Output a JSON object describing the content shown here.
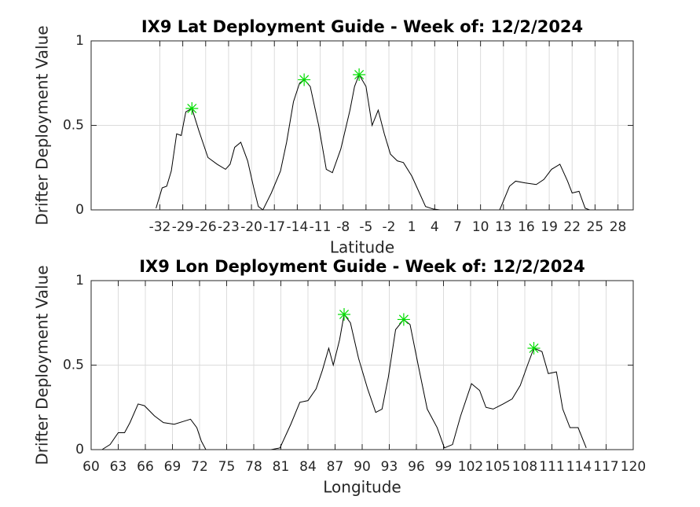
{
  "chart_data": [
    {
      "type": "line",
      "title": "IX9 Lat Deployment Guide - Week of: 12/2/2024",
      "xlabel": "Latitude",
      "ylabel": "Drifter Deployment Value",
      "xlim": [
        -41,
        30
      ],
      "ylim": [
        0,
        1
      ],
      "xticks": [
        -32,
        -29,
        -26,
        -23,
        -20,
        -17,
        -14,
        -11,
        -8,
        -5,
        -2,
        1,
        4,
        7,
        10,
        13,
        16,
        19,
        22,
        25,
        28
      ],
      "yticks": [
        0,
        {
          "value": 0.5,
          "label": "0.5"
        },
        1
      ],
      "grid": true,
      "series": [
        {
          "color": "#000000",
          "x": [
            -32.5,
            -31.7,
            -31.1,
            -30.5,
            -29.8,
            -29.2,
            -28.6,
            -27.8,
            -26.9,
            -25.7,
            -24.5,
            -23.4,
            -22.8,
            -22.2,
            -21.4,
            -20.5,
            -19.7,
            -19.1,
            -18.5,
            -17.4,
            -16.2,
            -15.4,
            -14.5,
            -13.7,
            -13.1,
            -12.3,
            -11.2,
            -10.2,
            -9.4,
            -8.3,
            -7.1,
            -6.5,
            -5.9,
            -5.0,
            -4.2,
            -3.4,
            -2.6,
            -1.8,
            -0.9,
            -0.1,
            1.0,
            2.0,
            2.8,
            3.8,
            4.7,
            12.5,
            12.7,
            13.8,
            14.6,
            15.8,
            17.3,
            18.3,
            19.3,
            20.4,
            21.4,
            22.0,
            22.9,
            23.7,
            24.3
          ],
          "values": [
            0.01,
            0.13,
            0.14,
            0.23,
            0.45,
            0.44,
            0.58,
            0.6,
            0.47,
            0.31,
            0.27,
            0.24,
            0.27,
            0.37,
            0.4,
            0.29,
            0.13,
            0.02,
            0,
            0.1,
            0.23,
            0.4,
            0.64,
            0.75,
            0.77,
            0.73,
            0.5,
            0.24,
            0.22,
            0.36,
            0.59,
            0.73,
            0.8,
            0.73,
            0.5,
            0.59,
            0.45,
            0.33,
            0.29,
            0.28,
            0.2,
            0.1,
            0.02,
            0.005,
            0,
            0,
            0.02,
            0.14,
            0.17,
            0.16,
            0.15,
            0.18,
            0.24,
            0.27,
            0.17,
            0.1,
            0.11,
            0.01,
            0
          ]
        },
        {
          "type": "scatter",
          "marker": "asterisk",
          "color": "#00dd00",
          "x": [
            -27.8,
            -13.1,
            -5.9
          ],
          "values": [
            0.6,
            0.77,
            0.8
          ]
        }
      ]
    },
    {
      "type": "line",
      "title": "IX9 Lon Deployment Guide - Week of: 12/2/2024",
      "xlabel": "Longitude",
      "ylabel": "Drifter Deployment Value",
      "xlim": [
        60,
        120
      ],
      "ylim": [
        0,
        1
      ],
      "xticks": [
        60,
        63,
        66,
        69,
        72,
        75,
        78,
        81,
        84,
        87,
        90,
        93,
        96,
        99,
        102,
        105,
        108,
        111,
        114,
        117,
        120
      ],
      "yticks": [
        0,
        {
          "value": 0.5,
          "label": "0.5"
        },
        1
      ],
      "grid": true,
      "series": [
        {
          "color": "#000000",
          "x": [
            61.2,
            62.1,
            63.0,
            63.7,
            64.3,
            65.2,
            65.9,
            67.0,
            68.0,
            69.2,
            70.4,
            71.0,
            71.7,
            72.2,
            72.7,
            79.9,
            80.9,
            82.1,
            83.1,
            84.0,
            84.9,
            85.6,
            86.3,
            86.8,
            87.5,
            88.0,
            88.7,
            89.6,
            90.6,
            91.5,
            92.2,
            92.9,
            93.7,
            94.6,
            95.3,
            96.2,
            97.2,
            98.3,
            99.1,
            100.0,
            100.9,
            102.1,
            103.0,
            103.7,
            104.5,
            105.6,
            106.6,
            107.5,
            108.3,
            109.0,
            109.9,
            110.6,
            111.5,
            112.2,
            113.0,
            113.9,
            114.8
          ],
          "values": [
            0,
            0.03,
            0.1,
            0.1,
            0.16,
            0.27,
            0.26,
            0.2,
            0.16,
            0.15,
            0.17,
            0.18,
            0.13,
            0.05,
            0,
            0,
            0.01,
            0.15,
            0.28,
            0.29,
            0.36,
            0.47,
            0.6,
            0.5,
            0.65,
            0.8,
            0.75,
            0.54,
            0.36,
            0.22,
            0.24,
            0.43,
            0.71,
            0.77,
            0.74,
            0.5,
            0.24,
            0.13,
            0.01,
            0.03,
            0.2,
            0.39,
            0.35,
            0.25,
            0.24,
            0.27,
            0.3,
            0.38,
            0.5,
            0.6,
            0.58,
            0.45,
            0.46,
            0.24,
            0.13,
            0.13,
            0.01
          ]
        },
        {
          "type": "scatter",
          "marker": "asterisk",
          "color": "#00dd00",
          "x": [
            88.0,
            94.6,
            109.0
          ],
          "values": [
            0.8,
            0.77,
            0.6
          ]
        }
      ]
    }
  ]
}
